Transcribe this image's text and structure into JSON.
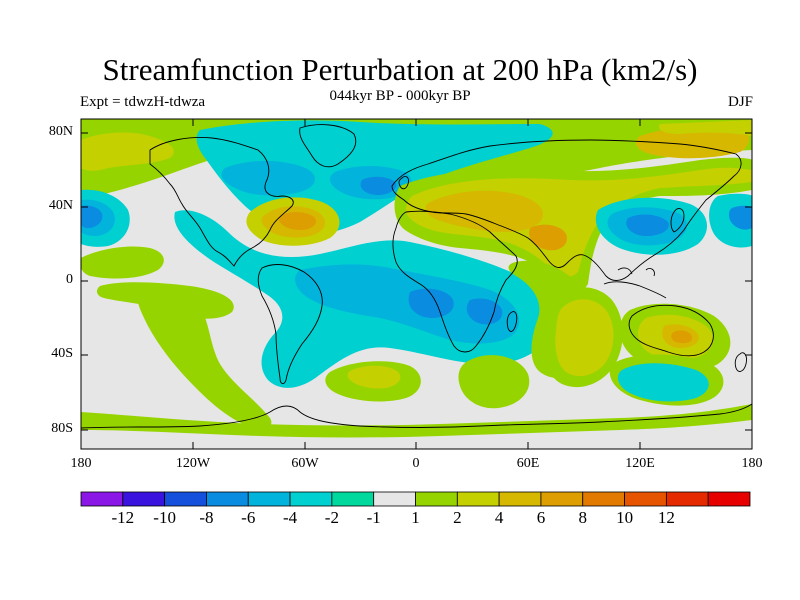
{
  "title": "Streamfunction Perturbation at 200 hPa (km2/s)",
  "subtitle": "044kyr BP - 000kyr BP",
  "experiment": "Expt = tdwzH-tdwza",
  "season": "DJF",
  "map": {
    "lon_range": [
      -180,
      180
    ],
    "lat_range": [
      -90,
      90
    ],
    "projection": "cylindrical-equidistant",
    "lat_ticks": [
      "80N",
      "40N",
      "0",
      "40S",
      "80S"
    ],
    "lon_ticks": [
      "180",
      "120W",
      "60W",
      "0",
      "60E",
      "120E",
      "180"
    ]
  },
  "colorbar": {
    "colors": [
      "#8a17e6",
      "#3a14de",
      "#1450dc",
      "#0a8ce0",
      "#02b4dc",
      "#00d0d0",
      "#00d89e",
      "#e6e6e6",
      "#96d400",
      "#c4d000",
      "#d6b800",
      "#dc9e00",
      "#e27a00",
      "#e65400",
      "#e62a00",
      "#e60000"
    ],
    "labels": [
      "-12",
      "-10",
      "-8",
      "-6",
      "-4",
      "-2",
      "-1",
      "1",
      "2",
      "4",
      "6",
      "8",
      "10",
      "12"
    ]
  }
}
